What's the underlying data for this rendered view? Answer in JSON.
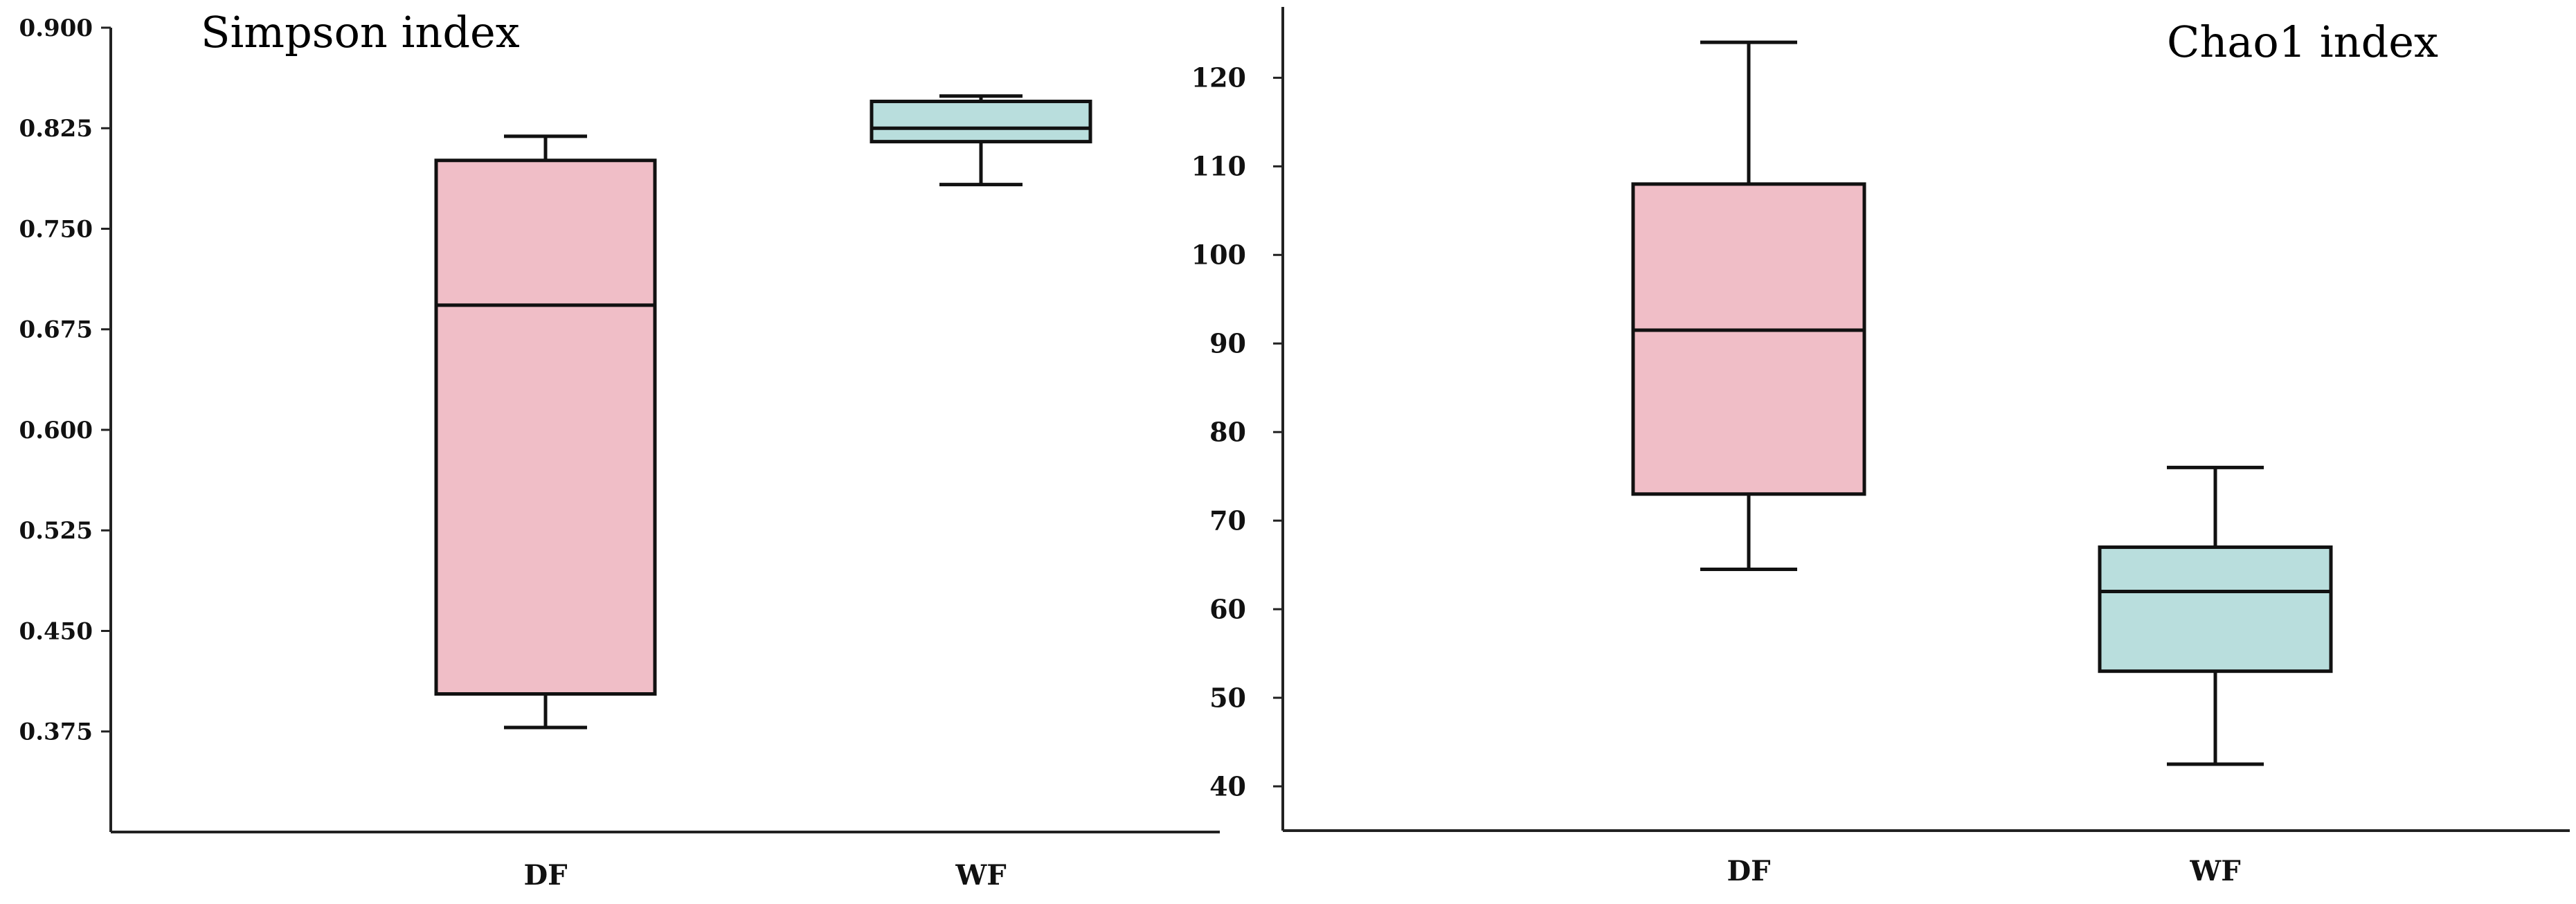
{
  "chart_data": [
    {
      "type": "box",
      "title": "Simpson index",
      "xlabel": "",
      "ylabel": "",
      "categories": [
        "DF",
        "WF"
      ],
      "ylim": [
        0.3,
        0.9
      ],
      "yticks": [
        0.375,
        0.45,
        0.525,
        0.6,
        0.675,
        0.75,
        0.825,
        0.9
      ],
      "ytick_labels": [
        "0.375",
        "0.450",
        "0.525",
        "0.600",
        "0.675",
        "0.750",
        "0.825",
        "0.900"
      ],
      "grid": false,
      "boxes": [
        {
          "category": "DF",
          "min": 0.378,
          "q1": 0.403,
          "median": 0.693,
          "q3": 0.801,
          "max": 0.819,
          "color": "#f0bec7"
        },
        {
          "category": "WF",
          "min": 0.783,
          "q1": 0.815,
          "median": 0.825,
          "q3": 0.845,
          "max": 0.849,
          "color": "#b9dedd"
        }
      ]
    },
    {
      "type": "box",
      "title": "Chao1 index",
      "xlabel": "",
      "ylabel": "",
      "categories": [
        "DF",
        "WF"
      ],
      "ylim": [
        35,
        128
      ],
      "yticks": [
        40,
        50,
        60,
        70,
        80,
        90,
        100,
        110,
        120
      ],
      "ytick_labels": [
        "40",
        "50",
        "60",
        "70",
        "80",
        "90",
        "100",
        "110",
        "120"
      ],
      "grid": false,
      "boxes": [
        {
          "category": "DF",
          "min": 64.5,
          "q1": 73,
          "median": 91.5,
          "q3": 108,
          "max": 124,
          "color": "#f0bec7"
        },
        {
          "category": "WF",
          "min": 42.5,
          "q1": 53,
          "median": 62,
          "q3": 67,
          "max": 76,
          "color": "#b9dedd"
        }
      ]
    }
  ]
}
